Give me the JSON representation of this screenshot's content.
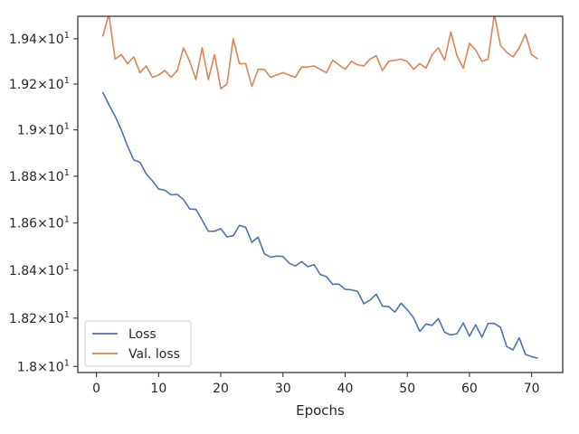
{
  "chart_data": {
    "type": "line",
    "title": "",
    "xlabel": "Epochs",
    "ylabel": "",
    "xlim": [
      -3,
      75
    ],
    "ylim": [
      17.975,
      19.5
    ],
    "xticks": [
      0,
      10,
      20,
      30,
      40,
      50,
      60,
      70
    ],
    "xtick_labels": [
      "0",
      "10",
      "20",
      "30",
      "40",
      "50",
      "60",
      "70"
    ],
    "yticks": [
      18.0,
      18.2,
      18.4,
      18.6,
      18.8,
      19.0,
      19.2,
      19.4
    ],
    "ytick_labels": [
      {
        "mantissa": "1.8",
        "exp": "1"
      },
      {
        "mantissa": "1.82",
        "exp": "1"
      },
      {
        "mantissa": "1.84",
        "exp": "1"
      },
      {
        "mantissa": "1.86",
        "exp": "1"
      },
      {
        "mantissa": "1.88",
        "exp": "1"
      },
      {
        "mantissa": "1.9",
        "exp": "1"
      },
      {
        "mantissa": "1.92",
        "exp": "1"
      },
      {
        "mantissa": "1.94",
        "exp": "1"
      }
    ],
    "y_scale": "log",
    "grid": false,
    "legend_position": "lower-left",
    "x": [
      1,
      2,
      3,
      4,
      5,
      6,
      7,
      8,
      9,
      10,
      11,
      12,
      13,
      14,
      15,
      16,
      17,
      18,
      19,
      20,
      21,
      22,
      23,
      24,
      25,
      26,
      27,
      28,
      29,
      30,
      31,
      32,
      33,
      34,
      35,
      36,
      37,
      38,
      39,
      40,
      41,
      42,
      43,
      44,
      45,
      46,
      47,
      48,
      49,
      50,
      51,
      52,
      53,
      54,
      55,
      56,
      57,
      58,
      59,
      60,
      61,
      62,
      63,
      64,
      65,
      66,
      67,
      68,
      69,
      70,
      71
    ],
    "series": [
      {
        "name": "Loss",
        "color": "#4c72b0",
        "values": [
          19.165,
          19.11,
          19.06,
          19.0,
          18.93,
          18.87,
          18.86,
          18.81,
          18.78,
          18.745,
          18.74,
          18.72,
          18.722,
          18.7,
          18.66,
          18.658,
          18.612,
          18.565,
          18.565,
          18.576,
          18.541,
          18.546,
          18.59,
          18.582,
          18.518,
          18.54,
          18.47,
          18.455,
          18.46,
          18.458,
          18.43,
          18.418,
          18.437,
          18.415,
          18.424,
          18.382,
          18.373,
          18.341,
          18.342,
          18.32,
          18.318,
          18.312,
          18.26,
          18.275,
          18.3,
          18.25,
          18.248,
          18.225,
          18.262,
          18.235,
          18.202,
          18.145,
          18.175,
          18.17,
          18.198,
          18.141,
          18.13,
          18.135,
          18.18,
          18.125,
          18.172,
          18.121,
          18.178,
          18.178,
          18.161,
          18.082,
          18.068,
          18.118,
          18.05,
          18.04,
          18.034
        ]
      },
      {
        "name": "Val. loss",
        "color": "#dd8452",
        "values": [
          19.41,
          19.51,
          19.31,
          19.33,
          19.29,
          19.32,
          19.25,
          19.28,
          19.23,
          19.24,
          19.26,
          19.23,
          19.26,
          19.36,
          19.3,
          19.22,
          19.36,
          19.22,
          19.33,
          19.18,
          19.2,
          19.4,
          19.29,
          19.29,
          19.19,
          19.265,
          19.265,
          19.23,
          19.24,
          19.25,
          19.24,
          19.23,
          19.275,
          19.275,
          19.28,
          19.265,
          19.25,
          19.305,
          19.285,
          19.265,
          19.3,
          19.285,
          19.28,
          19.31,
          19.325,
          19.26,
          19.3,
          19.305,
          19.31,
          19.3,
          19.265,
          19.29,
          19.27,
          19.33,
          19.36,
          19.305,
          19.43,
          19.325,
          19.27,
          19.38,
          19.35,
          19.3,
          19.31,
          19.51,
          19.37,
          19.34,
          19.32,
          19.36,
          19.42,
          19.33,
          19.31
        ]
      }
    ]
  }
}
